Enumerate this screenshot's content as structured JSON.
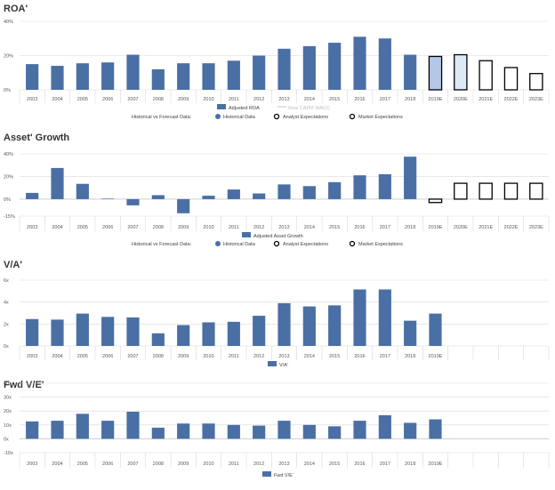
{
  "colors": {
    "bar": "#4a6fa5",
    "forecast_analyst_fill": "#b4c7e7",
    "forecast_analyst_fill2": "#dce9f7",
    "forecast_outline": "#000000",
    "grid": "#d9d9d9",
    "axis_text": "#595959",
    "wacc_line": "#d9d9d9"
  },
  "legend": {
    "historical_vs_forecast": "Historical vs Forecast Data:",
    "historical_data": "Historical Data",
    "analyst_expectations": "Analyst Expectations",
    "market_expectations": "Market Expectations"
  },
  "chart_data": [
    {
      "type": "bar",
      "title": "ROA'",
      "categories": [
        "2003",
        "2004",
        "2005",
        "2006",
        "2007",
        "2008",
        "2009",
        "2010",
        "2011",
        "2012",
        "2013",
        "2014",
        "2015",
        "2016",
        "2017",
        "2018",
        "2019E",
        "2020E",
        "2021E",
        "2022E",
        "2023E"
      ],
      "y_ticks": [
        "40%",
        "20%",
        "0%"
      ],
      "ylim": [
        0,
        40
      ],
      "series": [
        {
          "name": "Adjusted ROA",
          "values": [
            15,
            14,
            15.5,
            16,
            20.5,
            12,
            15.5,
            15.5,
            17,
            20,
            24,
            25.5,
            27.5,
            31,
            30,
            20.5,
            null,
            null,
            null,
            null,
            null
          ]
        },
        {
          "name": "Analyst Expectations",
          "values": [
            null,
            null,
            null,
            null,
            null,
            null,
            null,
            null,
            null,
            null,
            null,
            null,
            null,
            null,
            null,
            null,
            19.5,
            20.5,
            null,
            null,
            null
          ]
        },
        {
          "name": "Market Expectations",
          "values": [
            null,
            null,
            null,
            null,
            null,
            null,
            null,
            null,
            null,
            null,
            null,
            null,
            null,
            null,
            null,
            null,
            null,
            null,
            17,
            13,
            9.5
          ]
        }
      ],
      "legend": [
        "Adjusted ROA",
        "Real CAPM WACC"
      ]
    },
    {
      "type": "bar",
      "title": "Asset' Growth",
      "categories": [
        "2003",
        "2004",
        "2005",
        "2006",
        "2007",
        "2008",
        "2009",
        "2010",
        "2011",
        "2012",
        "2013",
        "2014",
        "2015",
        "2016",
        "2017",
        "2018",
        "2019E",
        "2020E",
        "2021E",
        "2022E",
        "2023E"
      ],
      "y_ticks": [
        "40%",
        "20%",
        "0%",
        "-15%"
      ],
      "ylim": [
        -15,
        40
      ],
      "series": [
        {
          "name": "Adjusted Asset Growth",
          "values": [
            5.5,
            27.5,
            13.5,
            0.5,
            -5.5,
            3.5,
            -12.5,
            3,
            8.5,
            5,
            13,
            11.5,
            15,
            21,
            22,
            37.5,
            null,
            null,
            null,
            null,
            null
          ]
        },
        {
          "name": "Analyst Expectations",
          "values": [
            null,
            null,
            null,
            null,
            null,
            null,
            null,
            null,
            null,
            null,
            null,
            null,
            null,
            null,
            null,
            null,
            -3,
            null,
            null,
            null,
            null
          ]
        },
        {
          "name": "Market Expectations",
          "values": [
            null,
            null,
            null,
            null,
            null,
            null,
            null,
            null,
            null,
            null,
            null,
            null,
            null,
            null,
            null,
            null,
            null,
            14,
            14,
            14,
            14
          ]
        }
      ],
      "legend": [
        "Adjusted Asset Growth"
      ]
    },
    {
      "type": "bar",
      "title": "V/A'",
      "categories": [
        "2003",
        "2004",
        "2005",
        "2006",
        "2007",
        "2008",
        "2009",
        "2010",
        "2011",
        "2012",
        "2013",
        "2014",
        "2015",
        "2016",
        "2017",
        "2018",
        "2019E",
        "",
        "",
        "",
        ""
      ],
      "y_ticks": [
        "6x",
        "4x",
        "2x",
        "0x"
      ],
      "ylim": [
        0,
        6
      ],
      "series": [
        {
          "name": "V/A'",
          "values": [
            2.45,
            2.4,
            2.95,
            2.65,
            2.6,
            1.15,
            1.9,
            2.15,
            2.2,
            2.75,
            3.9,
            3.6,
            3.7,
            5.15,
            5.15,
            2.3,
            2.95,
            null,
            null,
            null,
            null
          ]
        }
      ],
      "legend": [
        "V/A'"
      ]
    },
    {
      "type": "bar",
      "title": "Fwd V/E'",
      "categories": [
        "2003",
        "2004",
        "2005",
        "2006",
        "2007",
        "2008",
        "2009",
        "2010",
        "2011",
        "2012",
        "2013",
        "2014",
        "2015",
        "2016",
        "2017",
        "2018",
        "2019E",
        "",
        "",
        "",
        ""
      ],
      "y_ticks": [
        "40x",
        "30x",
        "20x",
        "10x",
        "0x",
        "-10x"
      ],
      "ylim": [
        -10,
        40
      ],
      "series": [
        {
          "name": "Fwd V/E'",
          "values": [
            12.5,
            13,
            18,
            13,
            19.5,
            8,
            11,
            11,
            10,
            9.5,
            13,
            10,
            9,
            13,
            17,
            11.5,
            14,
            null,
            null,
            null,
            null
          ]
        }
      ],
      "legend": [
        "Fwd V/E'"
      ]
    }
  ]
}
